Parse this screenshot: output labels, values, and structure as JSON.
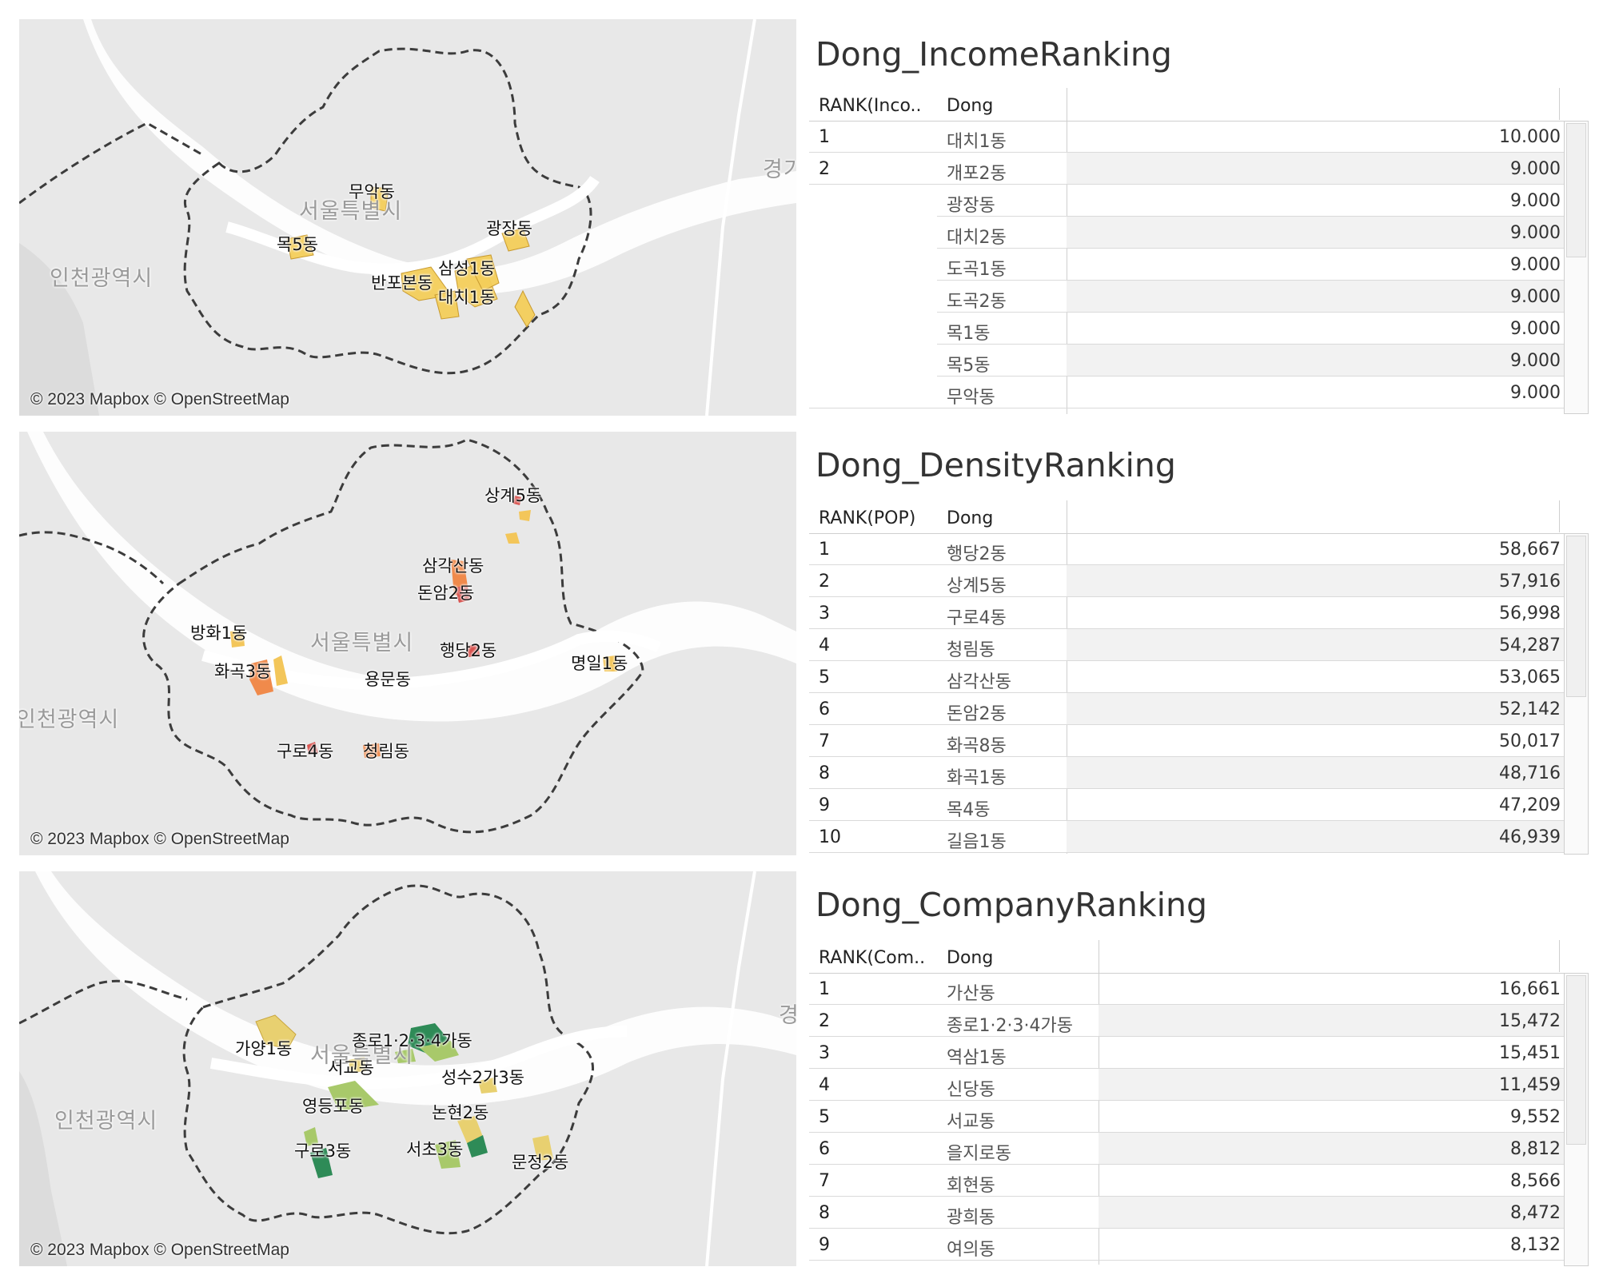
{
  "maps": {
    "attribution": "© 2023 Mapbox © OpenStreetMap",
    "income": {
      "labels": [
        "무악동",
        "서울특별시",
        "광장동",
        "목5동",
        "인천광역시",
        "삼성1동",
        "반포본동",
        "대치1동",
        "경기"
      ],
      "colors": {
        "fill": "#f3cd5a"
      }
    },
    "density": {
      "labels": [
        "상계5동",
        "삼각산동",
        "돈암2동",
        "방화1동",
        "서울특별시",
        "행당2동",
        "명일1동",
        "화곡3동",
        "용문동",
        "인천광역시",
        "구로4동",
        "청림동"
      ],
      "colors": {
        "high": "#d9534f",
        "mid": "#f08a4b",
        "low": "#f3c65a"
      }
    },
    "company": {
      "labels": [
        "종로1·2·3·4가동",
        "가양1동",
        "서울특별시",
        "서교동",
        "성수2가3동",
        "영등포동",
        "논현2동",
        "인천광역시",
        "구로3동",
        "서초3동",
        "문정2동",
        "경기"
      ],
      "colors": {
        "high": "#2e8b57",
        "mid": "#a8c96a",
        "low": "#e8d070"
      }
    }
  },
  "income": {
    "title": "Dong_IncomeRanking",
    "headers": {
      "rank": "RANK(Inco..",
      "dong": "Dong"
    },
    "rows": [
      {
        "rank": "1",
        "dong": "대치1동",
        "value": "10.000"
      },
      {
        "rank": "2",
        "dong": "개포2동",
        "value": "9.000"
      },
      {
        "rank": "",
        "dong": "광장동",
        "value": "9.000"
      },
      {
        "rank": "",
        "dong": "대치2동",
        "value": "9.000"
      },
      {
        "rank": "",
        "dong": "도곡1동",
        "value": "9.000"
      },
      {
        "rank": "",
        "dong": "도곡2동",
        "value": "9.000"
      },
      {
        "rank": "",
        "dong": "목1동",
        "value": "9.000"
      },
      {
        "rank": "",
        "dong": "목5동",
        "value": "9.000"
      },
      {
        "rank": "",
        "dong": "무악동",
        "value": "9.000"
      }
    ]
  },
  "density": {
    "title": "Dong_DensityRanking",
    "headers": {
      "rank": "RANK(POP)",
      "dong": "Dong"
    },
    "rows": [
      {
        "rank": "1",
        "dong": "행당2동",
        "value": "58,667"
      },
      {
        "rank": "2",
        "dong": "상계5동",
        "value": "57,916"
      },
      {
        "rank": "3",
        "dong": "구로4동",
        "value": "56,998"
      },
      {
        "rank": "4",
        "dong": "청림동",
        "value": "54,287"
      },
      {
        "rank": "5",
        "dong": "삼각산동",
        "value": "53,065"
      },
      {
        "rank": "6",
        "dong": "돈암2동",
        "value": "52,142"
      },
      {
        "rank": "7",
        "dong": "화곡8동",
        "value": "50,017"
      },
      {
        "rank": "8",
        "dong": "화곡1동",
        "value": "48,716"
      },
      {
        "rank": "9",
        "dong": "목4동",
        "value": "47,209"
      },
      {
        "rank": "10",
        "dong": "길음1동",
        "value": "46,939"
      }
    ]
  },
  "company": {
    "title": "Dong_CompanyRanking",
    "headers": {
      "rank": "RANK(Com..",
      "dong": "Dong"
    },
    "rows": [
      {
        "rank": "1",
        "dong": "가산동",
        "value": "16,661"
      },
      {
        "rank": "2",
        "dong": "종로1·2·3·4가동",
        "value": "15,472"
      },
      {
        "rank": "3",
        "dong": "역삼1동",
        "value": "15,451"
      },
      {
        "rank": "4",
        "dong": "신당동",
        "value": "11,459"
      },
      {
        "rank": "5",
        "dong": "서교동",
        "value": "9,552"
      },
      {
        "rank": "6",
        "dong": "을지로동",
        "value": "8,812"
      },
      {
        "rank": "7",
        "dong": "회현동",
        "value": "8,566"
      },
      {
        "rank": "8",
        "dong": "광희동",
        "value": "8,472"
      },
      {
        "rank": "9",
        "dong": "여의동",
        "value": "8,132"
      }
    ]
  }
}
